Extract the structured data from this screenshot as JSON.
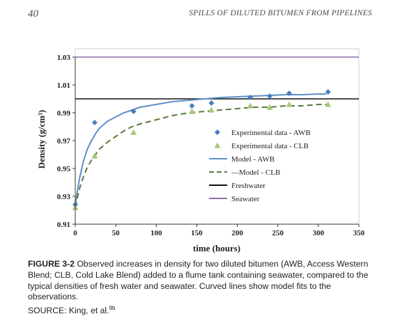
{
  "header": {
    "page_number": "40",
    "running_title": "SPILLS OF DILUTED BITUMEN FROM PIPELINES"
  },
  "caption": {
    "label": "FIGURE 3-2",
    "text": "Observed increases in density for two diluted bitumen (AWB, Access Western Blend; CLB, Cold Lake Blend) added to a flume tank containing seawater, compared to the typical densities of fresh water and seawater. Curved lines show model fits to the observations.",
    "source_prefix": "SOURCE: King, et al.",
    "source_sup": "9b"
  },
  "chart_data": {
    "type": "scatter",
    "xlabel": "time (hours)",
    "ylabel": "Density (g/cm³)",
    "xlim": [
      0,
      350
    ],
    "ylim": [
      0.91,
      1.03
    ],
    "x_ticks": [
      "0",
      "50",
      "100",
      "150",
      "200",
      "250",
      "300",
      "350"
    ],
    "y_ticks": [
      "0.91",
      "0.93",
      "0.95",
      "0.97",
      "0.99",
      "1.01",
      "1.03"
    ],
    "series": [
      {
        "name": "Experimental data - AWB",
        "kind": "points",
        "color": "#4a7fbf",
        "marker": "diamond",
        "x": [
          0,
          24,
          72,
          144,
          168,
          216,
          240,
          264,
          312
        ],
        "y": [
          0.924,
          0.983,
          0.991,
          0.995,
          0.997,
          1.001,
          1.002,
          1.004,
          1.005
        ]
      },
      {
        "name": "Experimental data - CLB",
        "kind": "points",
        "color": "#a8c878",
        "marker": "triangle",
        "x": [
          0,
          24,
          72,
          144,
          168,
          216,
          240,
          264,
          312
        ],
        "y": [
          0.922,
          0.959,
          0.976,
          0.991,
          0.992,
          0.995,
          0.994,
          0.996,
          0.996
        ]
      },
      {
        "name": "Model - AWB",
        "kind": "line",
        "color": "#5b8fc7",
        "dash": "solid",
        "x": [
          0,
          5,
          10,
          15,
          20,
          25,
          30,
          40,
          50,
          60,
          70,
          80,
          100,
          120,
          140,
          160,
          180,
          200,
          220,
          240,
          260,
          280,
          300,
          310
        ],
        "y": [
          0.924,
          0.942,
          0.955,
          0.964,
          0.97,
          0.975,
          0.979,
          0.984,
          0.987,
          0.99,
          0.992,
          0.994,
          0.996,
          0.998,
          0.999,
          1.0,
          1.001,
          1.0015,
          1.002,
          1.0025,
          1.003,
          1.003,
          1.0035,
          1.0035
        ]
      },
      {
        "name": "Model - CLB",
        "kind": "line",
        "color": "#5a7a3a",
        "dash": "dashed",
        "x": [
          0,
          5,
          10,
          15,
          20,
          25,
          30,
          40,
          50,
          60,
          70,
          80,
          100,
          120,
          140,
          160,
          180,
          200,
          220,
          240,
          260,
          280,
          300,
          310
        ],
        "y": [
          0.922,
          0.935,
          0.944,
          0.951,
          0.956,
          0.96,
          0.964,
          0.969,
          0.973,
          0.977,
          0.98,
          0.982,
          0.985,
          0.988,
          0.99,
          0.991,
          0.992,
          0.993,
          0.994,
          0.994,
          0.995,
          0.995,
          0.996,
          0.996
        ]
      },
      {
        "name": "Freshwater",
        "kind": "hline",
        "color": "#111111",
        "y": 1.0
      },
      {
        "name": "Seawater",
        "kind": "hline",
        "color": "#8a6fa8",
        "y": 1.03
      }
    ],
    "legend": [
      {
        "label": "Experimental data - AWB"
      },
      {
        "label": "Experimental data - CLB"
      },
      {
        "label": "Model - AWB"
      },
      {
        "label": "—Model - CLB"
      },
      {
        "label": "Freshwater"
      },
      {
        "label": "Seawater"
      }
    ],
    "grid": false,
    "legend_position": "right"
  }
}
